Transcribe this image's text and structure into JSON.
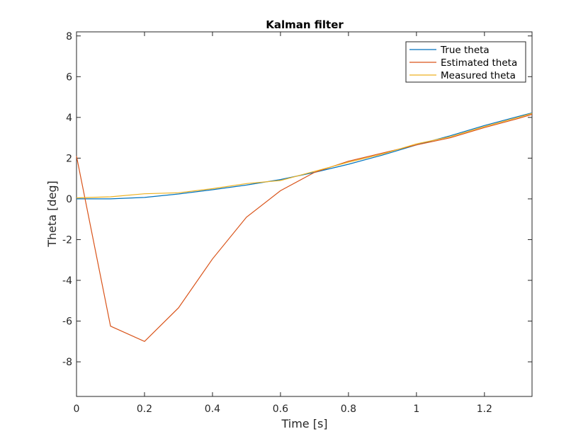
{
  "chart_data": {
    "type": "line",
    "title": "Kalman filter",
    "xlabel": "Time [s]",
    "ylabel": "Theta [deg]",
    "xlim": [
      0,
      1.34
    ],
    "ylim": [
      -9.7,
      8.2
    ],
    "x_ticks": [
      0,
      0.2,
      0.4,
      0.6,
      0.8,
      1,
      1.2
    ],
    "x_tick_labels": [
      "0",
      "0.2",
      "0.4",
      "0.6",
      "0.8",
      "1",
      "1.2"
    ],
    "y_ticks": [
      -8,
      -6,
      -4,
      -2,
      0,
      2,
      4,
      6,
      8
    ],
    "y_tick_labels": [
      "-8",
      "-6",
      "-4",
      "-2",
      "0",
      "2",
      "4",
      "6",
      "8"
    ],
    "grid": false,
    "legend_position": "top-right",
    "series": [
      {
        "name": "True theta",
        "color": "#0072BD",
        "x": [
          0,
          0.1,
          0.2,
          0.3,
          0.4,
          0.5,
          0.6,
          0.7,
          0.8,
          0.9,
          1.0,
          1.1,
          1.2,
          1.3,
          1.34
        ],
        "y": [
          0.0,
          0.0,
          0.07,
          0.24,
          0.45,
          0.68,
          0.95,
          1.3,
          1.7,
          2.15,
          2.65,
          3.1,
          3.6,
          4.05,
          4.22
        ]
      },
      {
        "name": "Estimated theta",
        "color": "#D95319",
        "x": [
          0,
          0.1,
          0.2,
          0.3,
          0.4,
          0.5,
          0.6,
          0.7,
          0.8,
          0.9,
          1.0,
          1.1,
          1.2,
          1.3,
          1.34
        ],
        "y": [
          2.1,
          -6.25,
          -7.0,
          -5.35,
          -2.95,
          -0.9,
          0.4,
          1.3,
          1.85,
          2.25,
          2.65,
          3.0,
          3.5,
          3.95,
          4.15
        ]
      },
      {
        "name": "Measured theta",
        "color": "#EDB120",
        "x": [
          0,
          0.1,
          0.2,
          0.3,
          0.4,
          0.5,
          0.6,
          0.7,
          0.8,
          0.9,
          1.0,
          1.1,
          1.2,
          1.3,
          1.34
        ],
        "y": [
          0.05,
          0.1,
          0.25,
          0.3,
          0.5,
          0.75,
          0.9,
          1.35,
          1.8,
          2.2,
          2.7,
          3.05,
          3.55,
          4.0,
          4.2
        ]
      }
    ]
  }
}
